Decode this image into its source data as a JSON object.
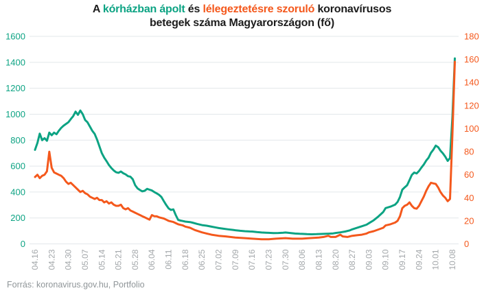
{
  "title": {
    "prefix": "A ",
    "series1_label": "kórházban ápolt",
    "mid": " és ",
    "series2_label": "lélegeztetésre szoruló",
    "suffix": " koronavírusos",
    "line2": "betegek száma Magyarországon (fő)"
  },
  "footer": "Forrás: koronavirus.gov.hu, Portfolio",
  "colors": {
    "series1": "#0ca383",
    "series2": "#f4581c",
    "grid": "#e2e7ea",
    "x_labels": "#a3a7aa",
    "title_text": "#1c1c1c",
    "footer_text": "#8f9598",
    "background": "#ffffff"
  },
  "chart_data": {
    "type": "line",
    "title": "A kórházban ápolt és lélegeztetésre szoruló koronavírusos betegek száma Magyarországon (fő)",
    "grid": true,
    "legend": "none (series identified by colored words in title)",
    "x_tick_labels": [
      "04.16",
      "04.23",
      "04.30",
      "05.07",
      "05.14",
      "05.21",
      "05.28",
      "06.04",
      "06.11",
      "06.18",
      "06.25",
      "07.02",
      "07.09",
      "07.16",
      "07.23",
      "07.30",
      "08.06",
      "08.13",
      "08.20",
      "08.27",
      "09.03",
      "09.10",
      "09.17",
      "09.24",
      "10.01",
      "10.08"
    ],
    "days_per_tick": 7,
    "left_axis": {
      "label_color": "#0ca383",
      "min": 0,
      "max": 1600,
      "ticks": [
        0,
        200,
        400,
        600,
        800,
        1000,
        1200,
        1400,
        1600
      ]
    },
    "right_axis": {
      "label_color": "#f4581c",
      "min": 0,
      "max": 180,
      "ticks": [
        0,
        20,
        40,
        60,
        80,
        100,
        120,
        140,
        160,
        180
      ]
    },
    "series": [
      {
        "name": "kórházban ápolt",
        "axis": "left",
        "color": "#0ca383",
        "points": [
          [
            0,
            725
          ],
          [
            1,
            778
          ],
          [
            2,
            850
          ],
          [
            3,
            800
          ],
          [
            4,
            815
          ],
          [
            5,
            795
          ],
          [
            6,
            858
          ],
          [
            7,
            838
          ],
          [
            8,
            858
          ],
          [
            9,
            845
          ],
          [
            10,
            872
          ],
          [
            11,
            895
          ],
          [
            12,
            912
          ],
          [
            13,
            925
          ],
          [
            14,
            938
          ],
          [
            15,
            962
          ],
          [
            16,
            985
          ],
          [
            17,
            1020
          ],
          [
            18,
            995
          ],
          [
            19,
            1028
          ],
          [
            20,
            1000
          ],
          [
            21,
            955
          ],
          [
            22,
            938
          ],
          [
            23,
            905
          ],
          [
            24,
            872
          ],
          [
            25,
            848
          ],
          [
            26,
            805
          ],
          [
            27,
            752
          ],
          [
            28,
            700
          ],
          [
            29,
            665
          ],
          [
            30,
            638
          ],
          [
            31,
            608
          ],
          [
            32,
            585
          ],
          [
            33,
            566
          ],
          [
            34,
            552
          ],
          [
            35,
            548
          ],
          [
            36,
            558
          ],
          [
            37,
            545
          ],
          [
            38,
            536
          ],
          [
            39,
            522
          ],
          [
            40,
            518
          ],
          [
            41,
            498
          ],
          [
            42,
            452
          ],
          [
            43,
            428
          ],
          [
            44,
            415
          ],
          [
            45,
            405
          ],
          [
            46,
            410
          ],
          [
            47,
            424
          ],
          [
            48,
            418
          ],
          [
            49,
            412
          ],
          [
            50,
            400
          ],
          [
            51,
            390
          ],
          [
            52,
            378
          ],
          [
            53,
            362
          ],
          [
            54,
            330
          ],
          [
            55,
            300
          ],
          [
            56,
            274
          ],
          [
            57,
            262
          ],
          [
            58,
            266
          ],
          [
            59,
            222
          ],
          [
            60,
            185
          ],
          [
            61,
            180
          ],
          [
            62,
            176
          ],
          [
            63,
            172
          ],
          [
            65,
            168
          ],
          [
            66,
            164
          ],
          [
            68,
            154
          ],
          [
            70,
            145
          ],
          [
            72,
            140
          ],
          [
            74,
            133
          ],
          [
            76,
            126
          ],
          [
            77,
            122
          ],
          [
            79,
            117
          ],
          [
            81,
            112
          ],
          [
            83,
            108
          ],
          [
            84,
            105
          ],
          [
            86,
            101
          ],
          [
            88,
            98
          ],
          [
            90,
            96
          ],
          [
            91,
            95
          ],
          [
            93,
            91
          ],
          [
            95,
            88
          ],
          [
            97,
            86
          ],
          [
            98,
            85
          ],
          [
            100,
            83
          ],
          [
            102,
            84
          ],
          [
            104,
            86
          ],
          [
            105,
            88
          ],
          [
            107,
            84
          ],
          [
            109,
            80
          ],
          [
            111,
            78
          ],
          [
            112,
            77
          ],
          [
            114,
            75
          ],
          [
            116,
            74
          ],
          [
            118,
            75
          ],
          [
            119,
            76
          ],
          [
            121,
            77
          ],
          [
            123,
            79
          ],
          [
            125,
            81
          ],
          [
            126,
            84
          ],
          [
            128,
            89
          ],
          [
            130,
            95
          ],
          [
            132,
            104
          ],
          [
            133,
            112
          ],
          [
            135,
            124
          ],
          [
            137,
            136
          ],
          [
            139,
            148
          ],
          [
            140,
            160
          ],
          [
            142,
            182
          ],
          [
            144,
            212
          ],
          [
            146,
            246
          ],
          [
            147,
            276
          ],
          [
            149,
            287
          ],
          [
            151,
            303
          ],
          [
            152,
            323
          ],
          [
            153,
            362
          ],
          [
            154,
            418
          ],
          [
            155,
            436
          ],
          [
            156,
            452
          ],
          [
            157,
            492
          ],
          [
            158,
            532
          ],
          [
            159,
            550
          ],
          [
            160,
            543
          ],
          [
            161,
            562
          ],
          [
            162,
            588
          ],
          [
            163,
            612
          ],
          [
            164,
            642
          ],
          [
            165,
            665
          ],
          [
            166,
            702
          ],
          [
            167,
            726
          ],
          [
            168,
            758
          ],
          [
            169,
            746
          ],
          [
            170,
            719
          ],
          [
            171,
            698
          ],
          [
            172,
            672
          ],
          [
            173,
            640
          ],
          [
            174,
            662
          ],
          [
            175,
            980
          ],
          [
            176,
            1430
          ]
        ]
      },
      {
        "name": "lélegeztetésre szoruló",
        "axis": "right",
        "color": "#f4581c",
        "points": [
          [
            0,
            58
          ],
          [
            1,
            60
          ],
          [
            2,
            57
          ],
          [
            3,
            59
          ],
          [
            4,
            60
          ],
          [
            5,
            63
          ],
          [
            6,
            80
          ],
          [
            7,
            66
          ],
          [
            8,
            62
          ],
          [
            9,
            61
          ],
          [
            10,
            60
          ],
          [
            11,
            59
          ],
          [
            12,
            57
          ],
          [
            13,
            54
          ],
          [
            14,
            52
          ],
          [
            15,
            53
          ],
          [
            16,
            51
          ],
          [
            17,
            49
          ],
          [
            18,
            47
          ],
          [
            19,
            45
          ],
          [
            20,
            46
          ],
          [
            21,
            44
          ],
          [
            22,
            43
          ],
          [
            23,
            41
          ],
          [
            24,
            40
          ],
          [
            25,
            39
          ],
          [
            26,
            40
          ],
          [
            27,
            38
          ],
          [
            28,
            38
          ],
          [
            29,
            36
          ],
          [
            30,
            37
          ],
          [
            31,
            35
          ],
          [
            32,
            36
          ],
          [
            33,
            34
          ],
          [
            34,
            33
          ],
          [
            35,
            33
          ],
          [
            36,
            34
          ],
          [
            37,
            31
          ],
          [
            38,
            30
          ],
          [
            39,
            31
          ],
          [
            40,
            29
          ],
          [
            41,
            28
          ],
          [
            42,
            27
          ],
          [
            43,
            26
          ],
          [
            44,
            25
          ],
          [
            45,
            24
          ],
          [
            46,
            23
          ],
          [
            47,
            22
          ],
          [
            48,
            21
          ],
          [
            49,
            25
          ],
          [
            50,
            24
          ],
          [
            51,
            24
          ],
          [
            52,
            23
          ],
          [
            54,
            22
          ],
          [
            55,
            21
          ],
          [
            56,
            20
          ],
          [
            58,
            19
          ],
          [
            60,
            17
          ],
          [
            62,
            16
          ],
          [
            63,
            15
          ],
          [
            65,
            14
          ],
          [
            67,
            12
          ],
          [
            70,
            10
          ],
          [
            72,
            9
          ],
          [
            74,
            8
          ],
          [
            77,
            7
          ],
          [
            80,
            6.5
          ],
          [
            84,
            5.5
          ],
          [
            88,
            5
          ],
          [
            91,
            4.5
          ],
          [
            95,
            4
          ],
          [
            98,
            4
          ],
          [
            101,
            4.5
          ],
          [
            105,
            5
          ],
          [
            108,
            4.5
          ],
          [
            112,
            4.5
          ],
          [
            115,
            5
          ],
          [
            119,
            5.5
          ],
          [
            121,
            6
          ],
          [
            123,
            7
          ],
          [
            124,
            6
          ],
          [
            126,
            6
          ],
          [
            128,
            8
          ],
          [
            129,
            6.5
          ],
          [
            131,
            6
          ],
          [
            133,
            7
          ],
          [
            135,
            7.5
          ],
          [
            137,
            8
          ],
          [
            139,
            9
          ],
          [
            140,
            10
          ],
          [
            142,
            11
          ],
          [
            144,
            12.5
          ],
          [
            146,
            14
          ],
          [
            147,
            16
          ],
          [
            149,
            17
          ],
          [
            151,
            18.5
          ],
          [
            152,
            20
          ],
          [
            153,
            24
          ],
          [
            154,
            31
          ],
          [
            155,
            33
          ],
          [
            156,
            34
          ],
          [
            157,
            36
          ],
          [
            158,
            33
          ],
          [
            159,
            31
          ],
          [
            160,
            30.5
          ],
          [
            161,
            33
          ],
          [
            162,
            37
          ],
          [
            163,
            41
          ],
          [
            164,
            46
          ],
          [
            165,
            50
          ],
          [
            166,
            53
          ],
          [
            167,
            52.5
          ],
          [
            168,
            52
          ],
          [
            169,
            49
          ],
          [
            170,
            45
          ],
          [
            171,
            42
          ],
          [
            172,
            40
          ],
          [
            173,
            37
          ],
          [
            174,
            39
          ],
          [
            175,
            95
          ],
          [
            176,
            158
          ]
        ]
      }
    ]
  }
}
